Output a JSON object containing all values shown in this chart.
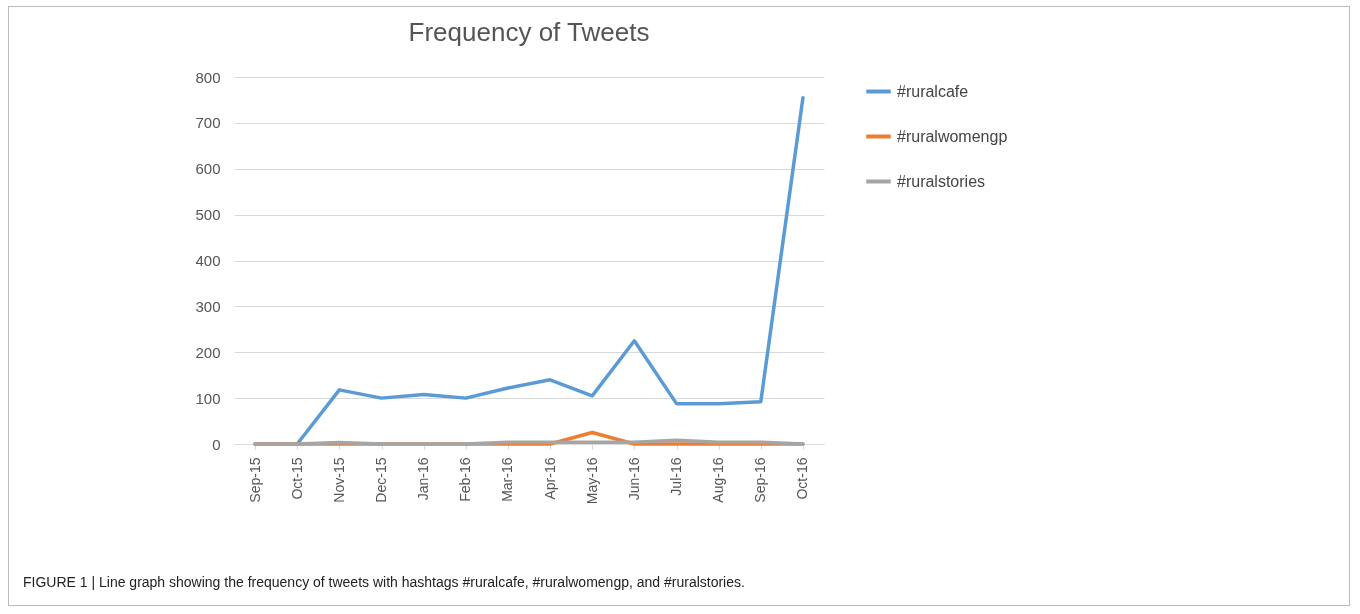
{
  "chart_data": {
    "type": "line",
    "title": "Frequency of Tweets",
    "categories": [
      "Sep-15",
      "Oct-15",
      "Nov-15",
      "Dec-15",
      "Jan-16",
      "Feb-16",
      "Mar-16",
      "Apr-16",
      "May-16",
      "Jun-16",
      "Jul-16",
      "Aug-16",
      "Sep-16",
      "Oct-16"
    ],
    "series": [
      {
        "name": "#ruralcafe",
        "color": "#5b9bd5",
        "values": [
          0,
          0,
          118,
          100,
          108,
          100,
          122,
          140,
          105,
          225,
          88,
          88,
          92,
          755
        ]
      },
      {
        "name": "#ruralwomengp",
        "color": "#ed7d31",
        "values": [
          0,
          0,
          0,
          0,
          0,
          0,
          0,
          0,
          25,
          0,
          0,
          0,
          0,
          0
        ]
      },
      {
        "name": "#ruralstories",
        "color": "#a5a5a5",
        "values": [
          0,
          0,
          3,
          0,
          0,
          0,
          4,
          4,
          4,
          4,
          8,
          4,
          4,
          0
        ]
      }
    ],
    "ylim": [
      0,
      800
    ],
    "yticks": [
      0,
      100,
      200,
      300,
      400,
      500,
      600,
      700,
      800
    ],
    "grid": "y",
    "legend": "right",
    "marker": "none",
    "line_style": "solid",
    "annotations": [
      "FIGURE 1 | Line graph showing the frequency of tweets with hashtags #ruralcafe, #ruralwomengp, and #ruralstories."
    ]
  }
}
